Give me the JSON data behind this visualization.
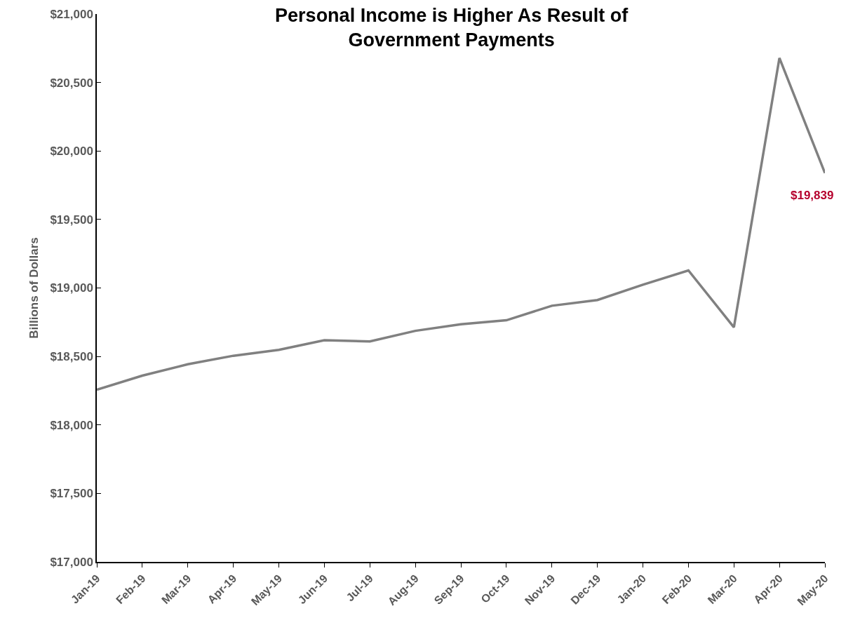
{
  "chart_data": {
    "type": "line",
    "title": "Personal Income is Higher As Result of\nGovernment Payments",
    "ylabel": "Billions of Dollars",
    "categories": [
      "Jan-19",
      "Feb-19",
      "Mar-19",
      "Apr-19",
      "May-19",
      "Jun-19",
      "Jul-19",
      "Aug-19",
      "Sep-19",
      "Oct-19",
      "Nov-19",
      "Dec-19",
      "Jan-20",
      "Feb-20",
      "Mar-20",
      "Apr-20",
      "May-20"
    ],
    "series": [
      {
        "color": "#808080",
        "values": [
          18257,
          18360,
          18443,
          18505,
          18548,
          18618,
          18610,
          18687,
          18735,
          18764,
          18870,
          18912,
          19024,
          19128,
          18713,
          20679,
          19839
        ],
        "value_labels": [
          null,
          null,
          null,
          null,
          null,
          null,
          null,
          null,
          null,
          null,
          null,
          null,
          null,
          null,
          null,
          null,
          "$19,839"
        ]
      }
    ],
    "ylim": [
      17000,
      21000
    ],
    "yticks": [
      {
        "value": 17000,
        "label": "$17,000"
      },
      {
        "value": 17500,
        "label": "$17,500"
      },
      {
        "value": 18000,
        "label": "$18,000"
      },
      {
        "value": 18500,
        "label": "$18,500"
      },
      {
        "value": 19000,
        "label": "$19,000"
      },
      {
        "value": 19500,
        "label": "$19,500"
      },
      {
        "value": 20000,
        "label": "$20,000"
      },
      {
        "value": 20500,
        "label": "$20,500"
      },
      {
        "value": 21000,
        "label": "$21,000"
      }
    ],
    "grid": false,
    "legend": false,
    "marker": "none",
    "line_style": "solid"
  }
}
